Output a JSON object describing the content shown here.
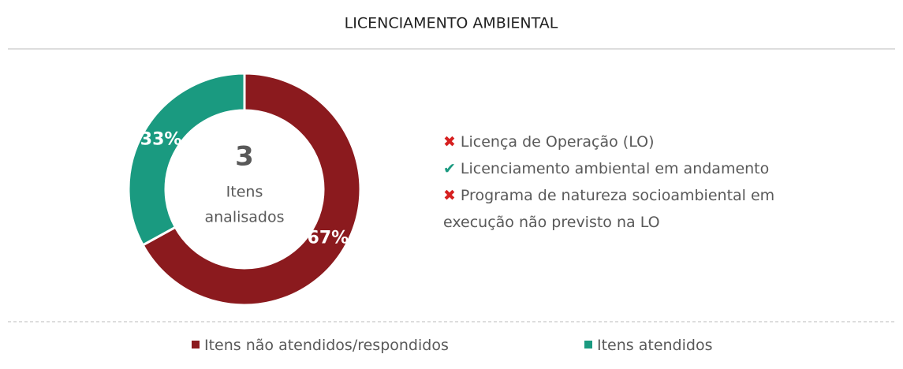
{
  "chart_data": {
    "type": "pie",
    "title": "LICENCIAMENTO  AMBIENTAL",
    "categories": [
      "Itens não atendidos/respondidos",
      "Itens atendidos"
    ],
    "values": [
      67,
      33
    ],
    "value_labels": [
      "67%",
      "33%"
    ],
    "colors": [
      "#8b1a1e",
      "#1a9a80"
    ],
    "center_value": 3,
    "center_label": [
      "Itens",
      "analisados"
    ],
    "legend": "bottom"
  },
  "checklist": [
    {
      "status": "fail",
      "text": "Licença de Operação (LO)"
    },
    {
      "status": "pass",
      "text": "Licenciamento ambiental em andamento"
    },
    {
      "status": "fail",
      "text": "Programa de natureza socioambiental em execução não previsto na LO"
    }
  ]
}
